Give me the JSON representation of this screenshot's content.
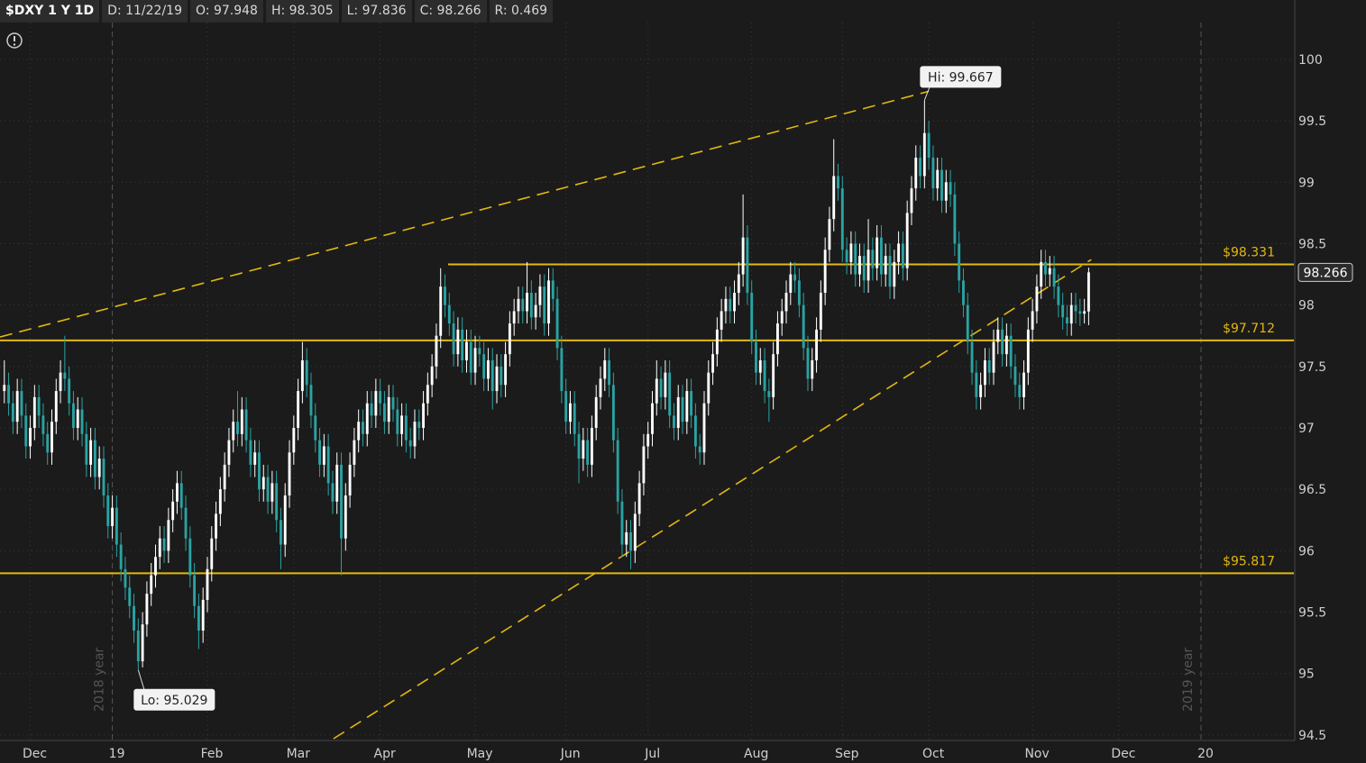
{
  "chart_data": {
    "type": "candlestick",
    "header": [
      "$DXY 1 Y 1D",
      "D: 11/22/19",
      "O: 97.948",
      "H: 98.305",
      "L: 97.836",
      "C: 98.266",
      "R: 0.469"
    ],
    "open": [
      97.3,
      97.35,
      97.2,
      97.05,
      97.3,
      97.1,
      96.85,
      97.0,
      97.25,
      97.1,
      96.95,
      96.8,
      97.05,
      97.3,
      97.45,
      97.4,
      97.2,
      97.0,
      97.15,
      96.95,
      96.7,
      96.9,
      96.6,
      96.75,
      96.45,
      96.2,
      96.35,
      96.05,
      95.85,
      95.7,
      95.55,
      95.35,
      95.1,
      95.4,
      95.65,
      95.8,
      95.95,
      96.1,
      96.0,
      96.25,
      96.4,
      96.55,
      96.35,
      96.1,
      95.8,
      95.55,
      95.35,
      95.6,
      95.85,
      96.1,
      96.3,
      96.5,
      96.7,
      96.9,
      97.05,
      96.95,
      97.15,
      96.9,
      96.7,
      96.8,
      96.5,
      96.6,
      96.4,
      96.55,
      96.25,
      96.05,
      96.45,
      96.8,
      97.0,
      97.3,
      97.55,
      97.35,
      97.1,
      96.9,
      96.7,
      96.85,
      96.55,
      96.4,
      96.7,
      96.1,
      96.45,
      96.7,
      96.9,
      97.05,
      96.95,
      97.2,
      97.1,
      97.3,
      97.2,
      97.05,
      97.25,
      97.15,
      96.95,
      97.1,
      96.9,
      96.85,
      97.05,
      97.0,
      97.2,
      97.35,
      97.5,
      97.75,
      98.15,
      98.0,
      97.85,
      97.6,
      97.8,
      97.55,
      97.7,
      97.45,
      97.65,
      97.6,
      97.4,
      97.55,
      97.3,
      97.5,
      97.35,
      97.6,
      97.85,
      97.95,
      98.05,
      97.95,
      98.1,
      97.9,
      98.0,
      98.15,
      97.85,
      98.2,
      98.05,
      97.65,
      97.3,
      97.05,
      97.2,
      96.95,
      96.75,
      96.9,
      96.7,
      97.0,
      97.25,
      97.4,
      97.55,
      97.35,
      96.9,
      96.4,
      96.05,
      96.15,
      96.0,
      96.3,
      96.55,
      96.85,
      96.95,
      97.2,
      97.4,
      97.25,
      97.45,
      97.1,
      97.0,
      97.25,
      97.05,
      97.3,
      97.1,
      96.85,
      96.8,
      97.2,
      97.45,
      97.6,
      97.8,
      97.95,
      98.05,
      97.95,
      98.1,
      98.25,
      98.55,
      98.1,
      97.7,
      97.45,
      97.55,
      97.3,
      97.25,
      97.6,
      97.85,
      97.95,
      98.1,
      98.25,
      98.2,
      98.0,
      97.65,
      97.4,
      97.55,
      97.8,
      98.1,
      98.45,
      98.7,
      99.05,
      98.95,
      98.45,
      98.35,
      98.5,
      98.25,
      98.4,
      98.2,
      98.45,
      98.3,
      98.55,
      98.25,
      98.4,
      98.15,
      98.35,
      98.5,
      98.3,
      98.75,
      98.95,
      99.2,
      99.05,
      99.4,
      99.2,
      98.95,
      99.1,
      98.85,
      99.0,
      98.9,
      98.5,
      98.2,
      98.0,
      97.7,
      97.45,
      97.25,
      97.35,
      97.55,
      97.45,
      97.7,
      97.8,
      97.6,
      97.75,
      97.5,
      97.35,
      97.25,
      97.45,
      97.8,
      97.95,
      98.15,
      98.35,
      98.25,
      98.3,
      98.15,
      98.0,
      97.9,
      97.85,
      98.0,
      97.95,
      97.93,
      97.948
    ],
    "high": [
      97.55,
      97.45,
      97.3,
      97.4,
      97.4,
      97.2,
      97.1,
      97.35,
      97.35,
      97.2,
      97.05,
      97.15,
      97.4,
      97.55,
      97.75,
      97.5,
      97.3,
      97.25,
      97.25,
      97.05,
      97.0,
      97.0,
      96.85,
      96.85,
      96.55,
      96.45,
      96.45,
      96.15,
      95.95,
      95.8,
      95.65,
      95.45,
      95.5,
      95.75,
      95.9,
      96.05,
      96.2,
      96.2,
      96.35,
      96.5,
      96.65,
      96.65,
      96.45,
      96.2,
      95.9,
      95.65,
      95.7,
      95.95,
      96.2,
      96.4,
      96.6,
      96.8,
      97.0,
      97.15,
      97.3,
      97.25,
      97.25,
      97.0,
      96.9,
      96.9,
      96.7,
      96.7,
      96.65,
      96.65,
      96.35,
      96.55,
      96.9,
      97.1,
      97.4,
      97.7,
      97.65,
      97.45,
      97.2,
      97.0,
      96.95,
      96.95,
      96.65,
      96.8,
      96.8,
      96.55,
      96.8,
      97.0,
      97.15,
      97.15,
      97.3,
      97.3,
      97.4,
      97.4,
      97.3,
      97.35,
      97.35,
      97.25,
      97.2,
      97.2,
      97.0,
      97.15,
      97.15,
      97.3,
      97.45,
      97.6,
      97.85,
      98.3,
      98.25,
      98.1,
      97.95,
      97.9,
      97.9,
      97.8,
      97.8,
      97.75,
      97.75,
      97.7,
      97.65,
      97.65,
      97.6,
      97.6,
      97.7,
      97.95,
      98.05,
      98.15,
      98.15,
      98.35,
      98.2,
      98.1,
      98.25,
      98.25,
      98.3,
      98.3,
      98.15,
      97.75,
      97.4,
      97.3,
      97.3,
      97.05,
      97.0,
      97.0,
      97.1,
      97.35,
      97.5,
      97.65,
      97.65,
      97.45,
      97.0,
      96.5,
      96.25,
      96.25,
      96.4,
      96.65,
      96.95,
      97.05,
      97.3,
      97.55,
      97.5,
      97.55,
      97.55,
      97.2,
      97.35,
      97.35,
      97.4,
      97.4,
      97.2,
      96.95,
      97.3,
      97.55,
      97.7,
      97.9,
      98.05,
      98.15,
      98.15,
      98.2,
      98.35,
      98.9,
      98.65,
      98.2,
      97.8,
      97.65,
      97.65,
      97.4,
      97.7,
      97.95,
      98.05,
      98.2,
      98.35,
      98.35,
      98.3,
      98.1,
      97.75,
      97.65,
      97.9,
      98.2,
      98.55,
      98.8,
      99.35,
      99.15,
      99.05,
      98.55,
      98.6,
      98.6,
      98.5,
      98.5,
      98.7,
      98.55,
      98.65,
      98.65,
      98.5,
      98.5,
      98.45,
      98.6,
      98.6,
      98.85,
      99.05,
      99.3,
      99.3,
      99.667,
      99.5,
      99.3,
      99.2,
      99.2,
      99.1,
      99.1,
      99.0,
      98.6,
      98.3,
      98.1,
      97.8,
      97.55,
      97.45,
      97.65,
      97.65,
      97.8,
      97.9,
      97.9,
      97.85,
      97.85,
      97.6,
      97.45,
      97.55,
      97.9,
      98.05,
      98.25,
      98.45,
      98.45,
      98.4,
      98.4,
      98.25,
      98.1,
      98.0,
      98.1,
      98.1,
      98.05,
      98.05,
      98.305
    ],
    "low": [
      97.2,
      97.1,
      96.95,
      96.95,
      97.0,
      96.75,
      96.75,
      96.9,
      97.0,
      96.85,
      96.7,
      96.7,
      96.95,
      97.2,
      97.3,
      97.1,
      96.9,
      96.9,
      96.85,
      96.6,
      96.6,
      96.5,
      96.5,
      96.35,
      96.1,
      96.1,
      95.95,
      95.75,
      95.6,
      95.45,
      95.25,
      95.029,
      95.05,
      95.3,
      95.55,
      95.7,
      95.85,
      95.9,
      95.9,
      96.15,
      96.3,
      96.25,
      96.0,
      95.7,
      95.45,
      95.2,
      95.25,
      95.5,
      95.75,
      96.0,
      96.2,
      96.4,
      96.6,
      96.8,
      96.85,
      96.85,
      96.8,
      96.6,
      96.6,
      96.4,
      96.4,
      96.3,
      96.3,
      96.15,
      95.85,
      95.95,
      96.35,
      96.7,
      96.9,
      97.2,
      97.25,
      97.0,
      96.8,
      96.6,
      96.6,
      96.45,
      96.3,
      96.3,
      95.8,
      96.0,
      96.35,
      96.6,
      96.8,
      96.85,
      96.85,
      97.0,
      97.0,
      97.1,
      96.95,
      96.95,
      97.05,
      96.85,
      96.85,
      96.8,
      96.75,
      96.75,
      96.9,
      96.9,
      97.1,
      97.25,
      97.4,
      97.65,
      97.9,
      97.75,
      97.5,
      97.5,
      97.45,
      97.45,
      97.35,
      97.35,
      97.5,
      97.3,
      97.3,
      97.15,
      97.2,
      97.25,
      97.25,
      97.5,
      97.75,
      97.85,
      97.85,
      97.85,
      97.8,
      97.8,
      97.9,
      97.75,
      97.75,
      97.95,
      97.55,
      97.2,
      96.95,
      96.95,
      96.85,
      96.55,
      96.65,
      96.6,
      96.6,
      96.9,
      97.15,
      97.3,
      97.25,
      96.8,
      96.3,
      95.95,
      95.95,
      95.85,
      95.9,
      96.2,
      96.45,
      96.75,
      96.85,
      97.1,
      97.15,
      97.15,
      97.0,
      96.9,
      96.9,
      96.95,
      96.95,
      97.0,
      96.75,
      96.7,
      96.7,
      97.1,
      97.35,
      97.5,
      97.7,
      97.85,
      97.85,
      97.85,
      98.0,
      98.15,
      98.0,
      97.6,
      97.35,
      97.35,
      97.2,
      97.05,
      97.15,
      97.5,
      97.75,
      97.85,
      98.0,
      98.1,
      97.9,
      97.55,
      97.3,
      97.3,
      97.45,
      97.7,
      98.0,
      98.35,
      98.6,
      98.85,
      98.35,
      98.25,
      98.25,
      98.15,
      98.15,
      98.1,
      98.1,
      98.2,
      98.2,
      98.15,
      98.15,
      98.05,
      98.05,
      98.25,
      98.2,
      98.2,
      98.65,
      98.85,
      98.95,
      98.95,
      99.1,
      98.85,
      98.85,
      98.75,
      98.75,
      98.8,
      98.4,
      98.1,
      97.9,
      97.6,
      97.35,
      97.15,
      97.15,
      97.25,
      97.35,
      97.35,
      97.6,
      97.5,
      97.5,
      97.4,
      97.25,
      97.15,
      97.15,
      97.35,
      97.7,
      97.85,
      98.05,
      98.15,
      98.15,
      98.05,
      97.9,
      97.8,
      97.75,
      97.75,
      97.85,
      97.83,
      97.85,
      97.836
    ],
    "close": [
      97.35,
      97.2,
      97.05,
      97.3,
      97.1,
      96.85,
      97.0,
      97.25,
      97.1,
      96.95,
      96.8,
      97.05,
      97.3,
      97.45,
      97.4,
      97.2,
      97.0,
      97.15,
      96.95,
      96.7,
      96.9,
      96.6,
      96.75,
      96.45,
      96.2,
      96.35,
      96.05,
      95.85,
      95.7,
      95.55,
      95.35,
      95.1,
      95.4,
      95.65,
      95.8,
      95.95,
      96.1,
      96.0,
      96.25,
      96.4,
      96.55,
      96.35,
      96.1,
      95.8,
      95.55,
      95.35,
      95.6,
      95.85,
      96.1,
      96.3,
      96.5,
      96.7,
      96.9,
      97.05,
      96.95,
      97.15,
      96.9,
      96.7,
      96.8,
      96.5,
      96.6,
      96.4,
      96.55,
      96.25,
      96.05,
      96.45,
      96.8,
      97.0,
      97.3,
      97.55,
      97.35,
      97.1,
      96.9,
      96.7,
      96.85,
      96.55,
      96.4,
      96.7,
      96.1,
      96.45,
      96.7,
      96.9,
      97.05,
      96.95,
      97.2,
      97.1,
      97.3,
      97.2,
      97.05,
      97.25,
      97.15,
      96.95,
      97.1,
      96.9,
      96.85,
      97.05,
      97.0,
      97.2,
      97.35,
      97.5,
      97.75,
      98.15,
      98.0,
      97.85,
      97.6,
      97.8,
      97.55,
      97.7,
      97.45,
      97.65,
      97.6,
      97.4,
      97.55,
      97.3,
      97.5,
      97.35,
      97.6,
      97.85,
      97.95,
      98.05,
      97.95,
      98.1,
      97.9,
      98.0,
      98.15,
      97.85,
      98.2,
      98.05,
      97.65,
      97.3,
      97.05,
      97.2,
      96.95,
      96.75,
      96.9,
      96.7,
      97.0,
      97.25,
      97.4,
      97.55,
      97.35,
      96.9,
      96.4,
      96.05,
      96.15,
      96.0,
      96.3,
      96.55,
      96.85,
      96.95,
      97.2,
      97.4,
      97.25,
      97.45,
      97.1,
      97.0,
      97.25,
      97.05,
      97.3,
      97.1,
      96.85,
      96.8,
      97.2,
      97.45,
      97.6,
      97.8,
      97.95,
      98.05,
      97.95,
      98.1,
      98.25,
      98.55,
      98.1,
      97.7,
      97.45,
      97.55,
      97.3,
      97.25,
      97.6,
      97.85,
      97.95,
      98.1,
      98.25,
      98.2,
      98.0,
      97.65,
      97.4,
      97.55,
      97.8,
      98.1,
      98.45,
      98.7,
      99.05,
      98.95,
      98.45,
      98.35,
      98.5,
      98.25,
      98.4,
      98.2,
      98.45,
      98.3,
      98.55,
      98.25,
      98.4,
      98.15,
      98.35,
      98.5,
      98.3,
      98.75,
      98.95,
      99.2,
      99.05,
      99.4,
      99.2,
      98.95,
      99.1,
      98.85,
      99.0,
      98.9,
      98.5,
      98.2,
      98.0,
      97.7,
      97.45,
      97.25,
      97.35,
      97.55,
      97.45,
      97.7,
      97.8,
      97.6,
      97.75,
      97.5,
      97.35,
      97.25,
      97.45,
      97.8,
      97.95,
      98.15,
      98.35,
      98.25,
      98.3,
      98.15,
      98.0,
      97.9,
      97.85,
      98.0,
      97.95,
      97.93,
      97.95,
      98.266
    ],
    "up_color": "#ffffff",
    "down_color": "#2aa3a3",
    "xlim": [
      -1,
      298.5
    ],
    "xticks": [
      {
        "value": 6,
        "label": "Dec"
      },
      {
        "value": 25,
        "label": "19"
      },
      {
        "value": 47,
        "label": "Feb"
      },
      {
        "value": 67,
        "label": "Mar"
      },
      {
        "value": 87,
        "label": "Apr"
      },
      {
        "value": 109,
        "label": "May"
      },
      {
        "value": 130,
        "label": "Jun"
      },
      {
        "value": 149,
        "label": "Jul"
      },
      {
        "value": 173,
        "label": "Aug"
      },
      {
        "value": 194,
        "label": "Sep"
      },
      {
        "value": 214,
        "label": "Oct"
      },
      {
        "value": 238,
        "label": "Nov"
      },
      {
        "value": 258,
        "label": "Dec"
      },
      {
        "value": 277,
        "label": "20"
      }
    ],
    "year_labels": [
      "2018 year",
      "2019 year"
    ],
    "ylim": [
      94.47,
      100.3
    ],
    "yticks": [
      94.5,
      95,
      95.5,
      96,
      96.5,
      97,
      97.5,
      98,
      98.5,
      99,
      99.5,
      100
    ],
    "grid": true,
    "levels": [
      {
        "value": 98.331,
        "label": "$98.331"
      },
      {
        "value": 97.712,
        "label": "$97.712"
      },
      {
        "value": 95.817,
        "label": "$95.817"
      }
    ],
    "level_color": "#e3b80f",
    "trendlines": [
      {
        "start": [
          -1,
          97.74
        ],
        "end": [
          214,
          99.74
        ]
      },
      {
        "start": [
          76.2,
          94.47
        ],
        "end": [
          251.6,
          98.37
        ]
      }
    ],
    "high_label": "Hi: 99.667",
    "low_label": "Lo: 95.029"
  }
}
